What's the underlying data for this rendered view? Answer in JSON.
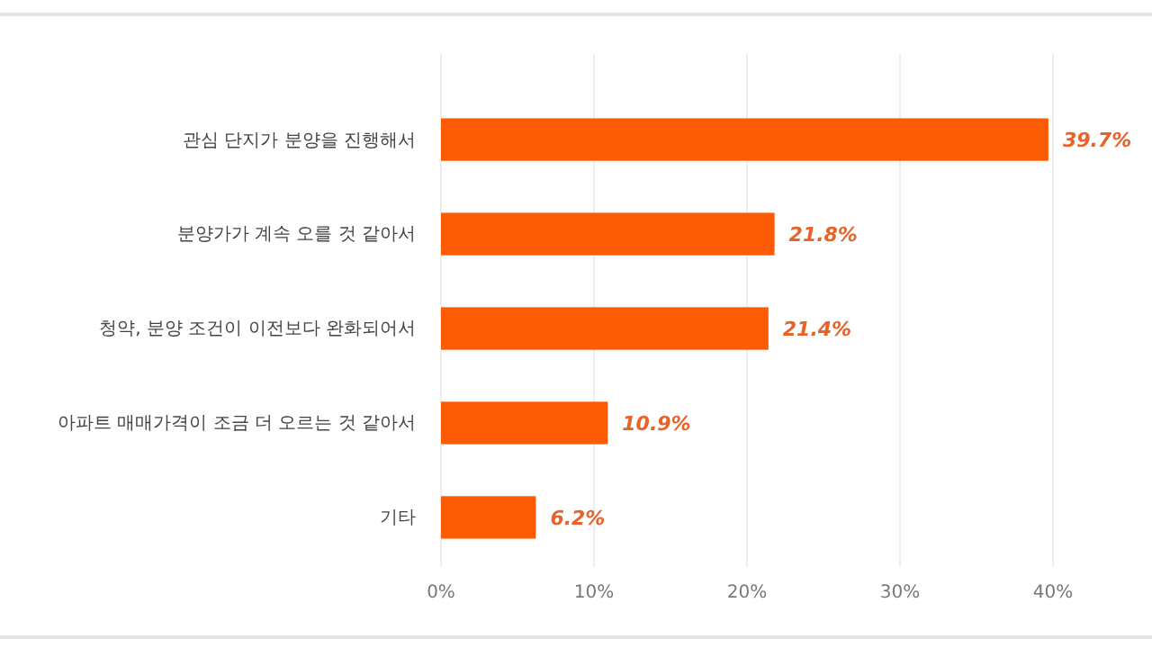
{
  "chart_data": {
    "type": "bar",
    "orientation": "horizontal",
    "categories": [
      "관심 단지가 분양을 진행해서",
      "분양가가 계속 오를 것 같아서",
      "청약, 분양 조건이 이전보다 완화되어서",
      "아파트 매매가격이 조금 더 오르는 것 같아서",
      "기타"
    ],
    "values": [
      39.7,
      21.8,
      21.4,
      10.9,
      6.2
    ],
    "value_labels": [
      "39.7%",
      "21.8%",
      "21.4%",
      "10.9%",
      "6.2%"
    ],
    "color": "#fc5a03",
    "xlim": [
      0,
      40
    ],
    "xticks": [
      {
        "value": 0,
        "label": "0%"
      },
      {
        "value": 10,
        "label": "10%"
      },
      {
        "value": 20,
        "label": "20%"
      },
      {
        "value": 30,
        "label": "30%"
      },
      {
        "value": 40,
        "label": "40%"
      }
    ],
    "grid": "x"
  }
}
